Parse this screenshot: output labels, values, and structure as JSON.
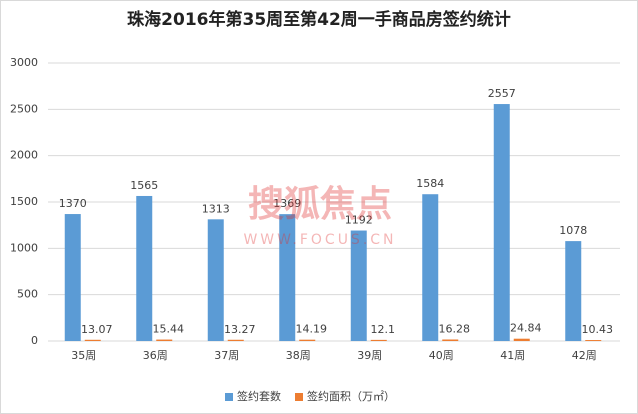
{
  "chart_data": {
    "type": "bar",
    "title": "珠海2016年第35周至第42周一手商品房签约统计",
    "categories": [
      "35周",
      "36周",
      "37周",
      "38周",
      "39周",
      "40周",
      "41周",
      "42周"
    ],
    "series": [
      {
        "name": "签约套数",
        "color": "#5b9bd5",
        "values": [
          1370,
          1565,
          1313,
          1369,
          1192,
          1584,
          2557,
          1078
        ]
      },
      {
        "name": "签约面积（万㎡）",
        "color": "#ed7d31",
        "values": [
          13.07,
          15.44,
          13.27,
          14.19,
          12.1,
          16.28,
          24.84,
          10.43
        ]
      }
    ],
    "ylim": [
      0,
      3000
    ],
    "yticks": [
      0,
      500,
      1000,
      1500,
      2000,
      2500,
      3000
    ],
    "grid": true,
    "legend": "bottom",
    "watermark": "搜狐焦点",
    "watermark_url": "WWW.FOCUS.CN"
  }
}
